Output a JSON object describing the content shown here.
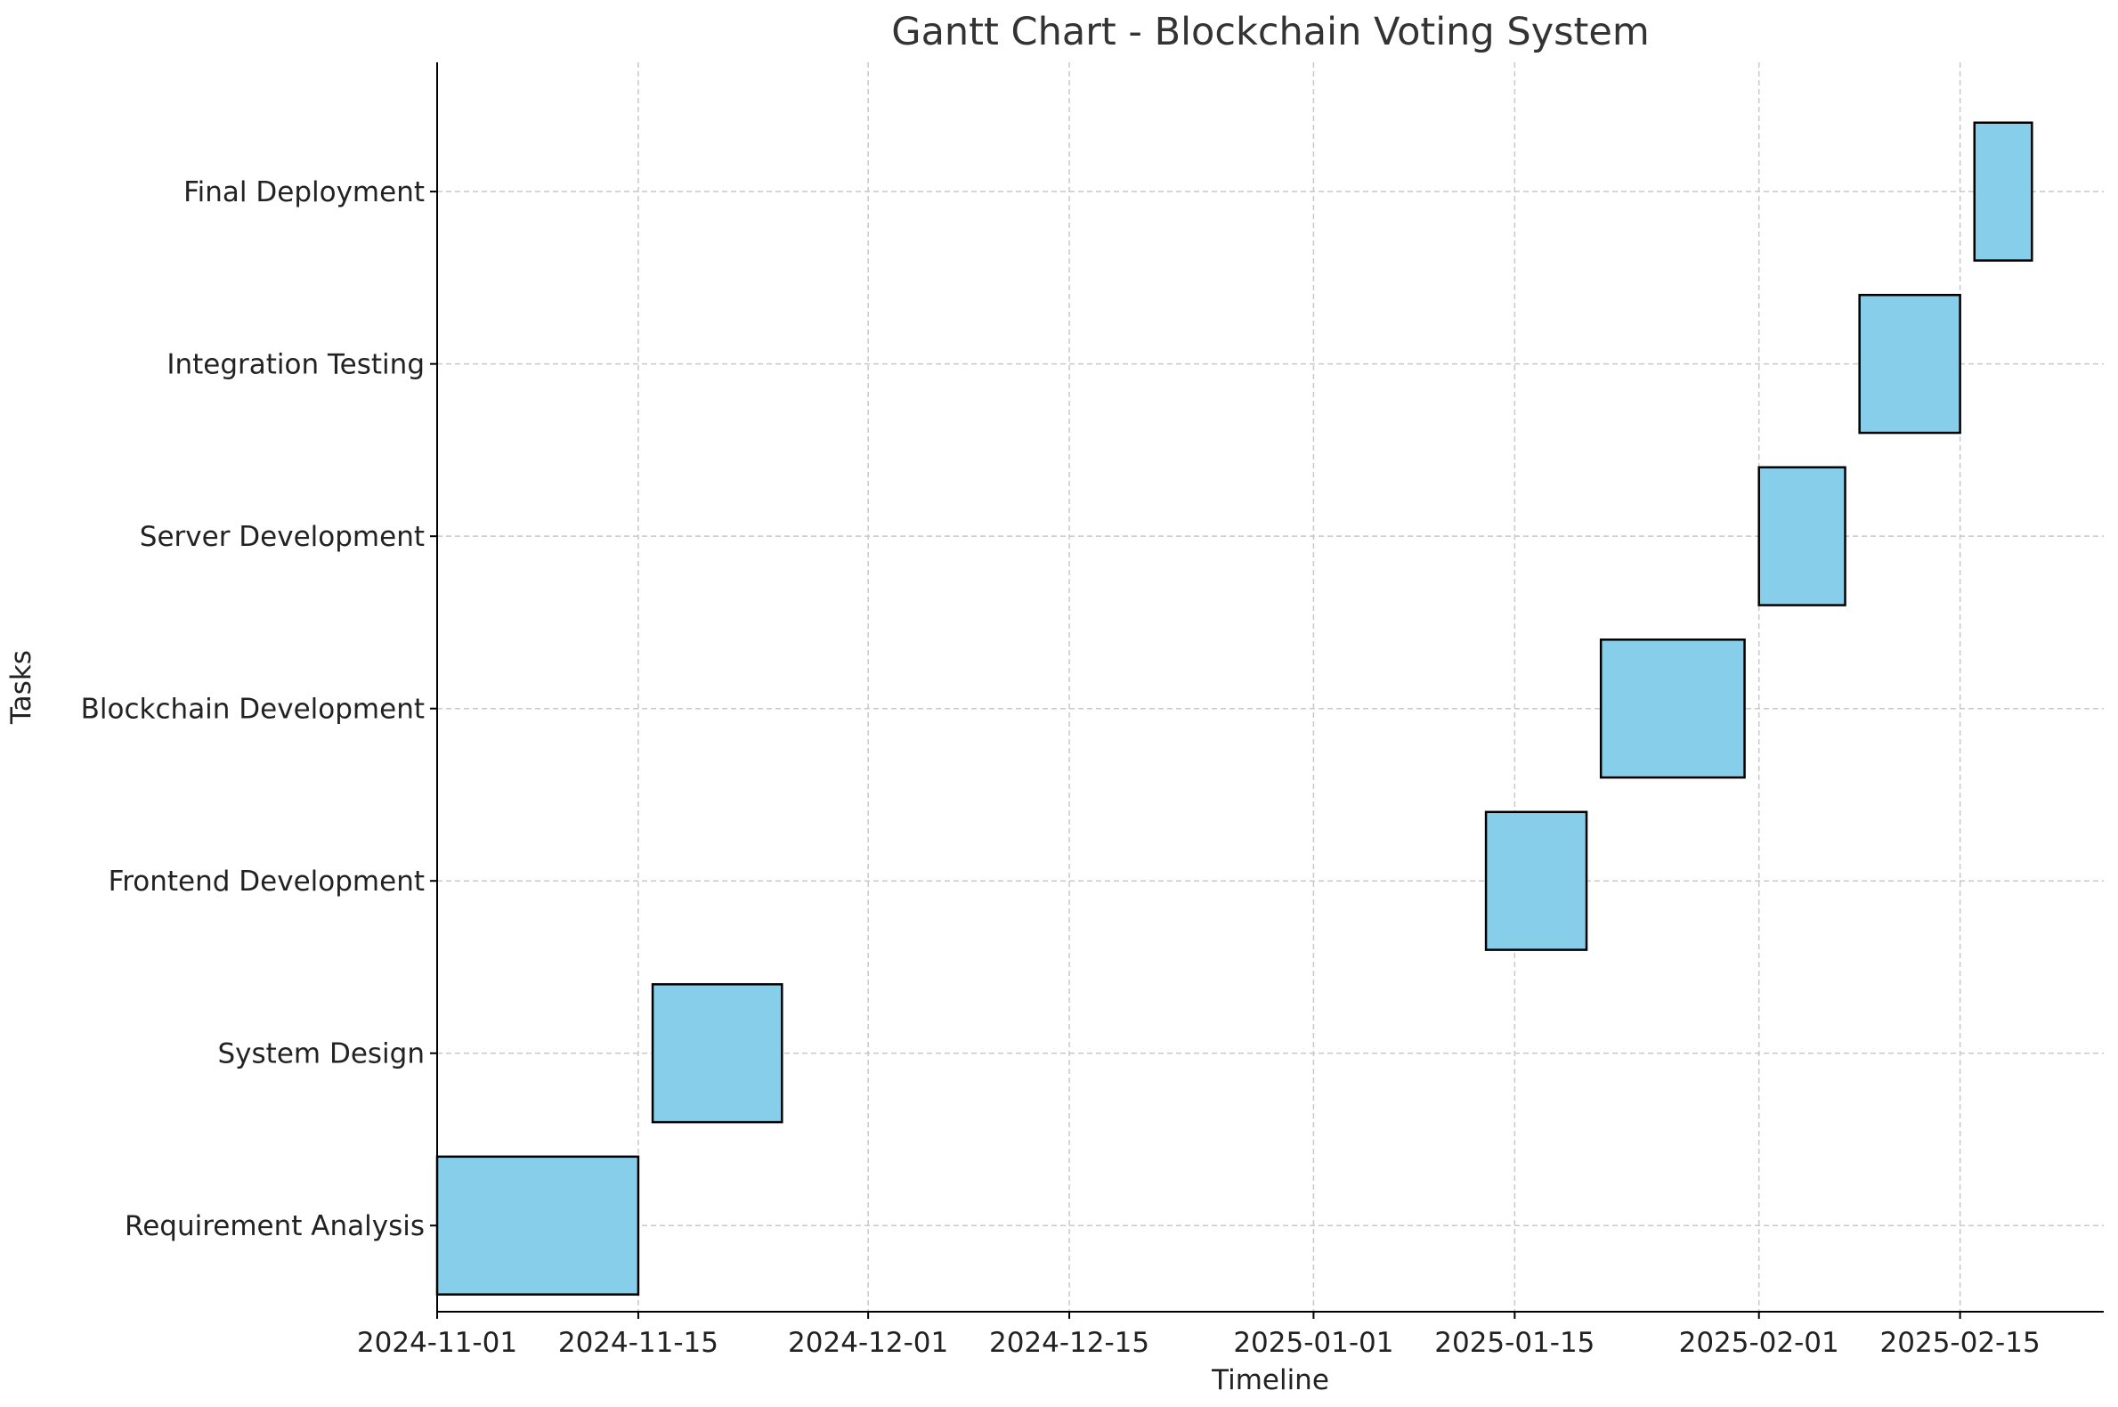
{
  "chart_data": {
    "type": "bar",
    "orientation": "horizontal",
    "title": "Gantt Chart - Blockchain Voting System",
    "xlabel": "Timeline",
    "ylabel": "Tasks",
    "xlim": [
      "2024-11-01",
      "2025-02-25"
    ],
    "x_ticks": [
      "2024-11-01",
      "2024-11-15",
      "2024-12-01",
      "2024-12-15",
      "2025-01-01",
      "2025-01-15",
      "2025-02-01",
      "2025-02-15"
    ],
    "grid": true,
    "bar_color": "#87CEEB",
    "edge_color": "#000000",
    "tasks": [
      {
        "name": "Requirement Analysis",
        "start": "2024-11-01",
        "end": "2024-11-15"
      },
      {
        "name": "System Design",
        "start": "2024-11-16",
        "end": "2024-11-25"
      },
      {
        "name": "Frontend Development",
        "start": "2025-01-13",
        "end": "2025-01-20"
      },
      {
        "name": "Blockchain Development",
        "start": "2025-01-21",
        "end": "2025-01-31"
      },
      {
        "name": "Server Development",
        "start": "2025-02-01",
        "end": "2025-02-07"
      },
      {
        "name": "Integration Testing",
        "start": "2025-02-08",
        "end": "2025-02-15"
      },
      {
        "name": "Final Deployment",
        "start": "2025-02-16",
        "end": "2025-02-20"
      }
    ]
  }
}
